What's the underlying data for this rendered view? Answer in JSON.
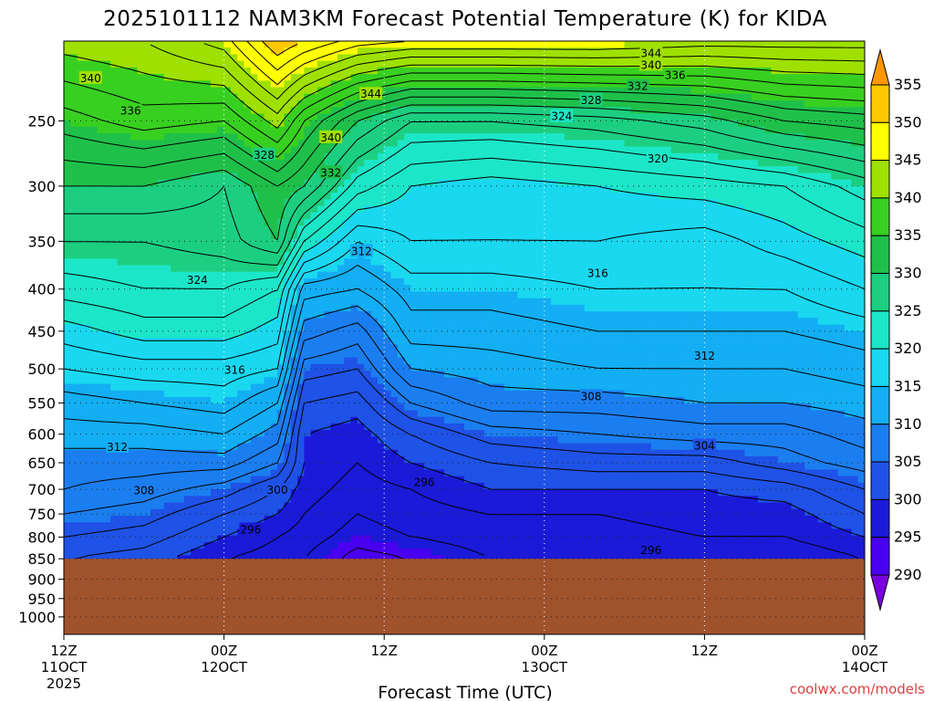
{
  "chart_data": {
    "type": "heatmap",
    "title": "2025101112 NAM3KM Forecast Potential Temperature (K) for KIDA",
    "xlabel": "Forecast Time (UTC)",
    "x_ticks": [
      {
        "label": "12Z",
        "sub": "11OCT",
        "sub2": "2025",
        "hours": 0
      },
      {
        "label": "00Z",
        "sub": "12OCT",
        "sub2": "",
        "hours": 12
      },
      {
        "label": "12Z",
        "sub": "",
        "sub2": "",
        "hours": 24
      },
      {
        "label": "00Z",
        "sub": "13OCT",
        "sub2": "",
        "hours": 36
      },
      {
        "label": "12Z",
        "sub": "",
        "sub2": "",
        "hours": 48
      },
      {
        "label": "00Z",
        "sub": "14OCT",
        "sub2": "",
        "hours": 60
      }
    ],
    "y_ticks": [
      250,
      300,
      350,
      400,
      450,
      500,
      550,
      600,
      650,
      700,
      750,
      800,
      850,
      900,
      950,
      1000
    ],
    "y_scale": "log",
    "ylim": [
      200,
      1050
    ],
    "xlim": [
      0,
      60
    ],
    "grid": true,
    "colorbar": {
      "levels": [
        290,
        295,
        300,
        305,
        310,
        315,
        320,
        325,
        330,
        335,
        340,
        345,
        350,
        355
      ],
      "colors": [
        "#7a00e0",
        "#4a00f0",
        "#1a1ad8",
        "#1f52e6",
        "#1b7ef0",
        "#13aef3",
        "#19d8f0",
        "#1ce6c8",
        "#1ccf80",
        "#1fc04a",
        "#38d020",
        "#9fe000",
        "#ffff00",
        "#ffc800",
        "#ff9800"
      ],
      "extend": "both"
    },
    "theta_profile": {
      "pressures": [
        200,
        250,
        300,
        350,
        400,
        450,
        500,
        550,
        600,
        650,
        700,
        750,
        800,
        850
      ],
      "times": [
        0,
        6,
        12,
        16,
        18,
        22,
        26,
        32,
        40,
        48,
        54,
        60
      ],
      "values": [
        [
          341,
          342,
          345,
          352,
          350,
          347,
          346,
          346,
          346,
          345,
          345,
          345
        ],
        [
          335,
          337,
          336,
          341,
          336,
          330,
          326,
          326,
          327,
          329,
          332,
          333
        ],
        [
          330,
          330,
          328,
          332,
          330,
          323,
          320,
          319,
          320,
          321,
          322,
          325
        ],
        [
          326,
          326,
          327,
          330,
          322,
          316,
          318,
          318,
          318,
          317,
          319,
          321
        ],
        [
          323,
          324,
          324,
          322,
          313,
          312,
          315,
          315,
          316,
          316,
          316,
          318
        ],
        [
          319,
          321,
          321,
          319,
          309,
          307,
          313,
          313,
          314,
          314,
          314,
          315
        ],
        [
          316,
          317,
          317,
          316,
          305,
          304,
          310,
          311,
          312,
          312,
          312,
          313
        ],
        [
          313,
          314,
          315,
          312,
          302,
          301,
          306,
          309,
          309,
          310,
          310,
          311
        ],
        [
          311,
          311,
          312,
          309,
          300,
          299,
          302,
          305,
          306,
          307,
          307,
          309
        ],
        [
          309,
          309,
          309,
          306,
          300,
          298,
          300,
          302,
          303,
          303,
          305,
          307
        ],
        [
          308,
          307,
          305,
          302,
          299,
          297,
          298,
          300,
          300,
          300,
          301,
          304
        ],
        [
          306,
          305,
          302,
          300,
          298,
          296,
          297,
          298,
          298,
          299,
          299,
          302
        ],
        [
          304,
          303,
          300,
          298,
          297,
          295,
          296,
          297,
          297,
          298,
          298,
          300
        ],
        [
          302,
          301,
          298,
          297,
          296,
          293,
          294,
          296,
          296,
          296,
          296,
          298
        ]
      ]
    },
    "contour_labels": [
      {
        "v": "340",
        "t": 2.0,
        "p": 222
      },
      {
        "v": "336",
        "t": 5.0,
        "p": 243
      },
      {
        "v": "344",
        "t": 23.0,
        "p": 232
      },
      {
        "v": "340",
        "t": 20.0,
        "p": 262
      },
      {
        "v": "332",
        "t": 20.0,
        "p": 289
      },
      {
        "v": "328",
        "t": 15.0,
        "p": 275
      },
      {
        "v": "344",
        "t": 44.0,
        "p": 207
      },
      {
        "v": "340",
        "t": 44.0,
        "p": 214
      },
      {
        "v": "336",
        "t": 45.8,
        "p": 220
      },
      {
        "v": "332",
        "t": 43.0,
        "p": 227
      },
      {
        "v": "328",
        "t": 39.5,
        "p": 236
      },
      {
        "v": "324",
        "t": 37.3,
        "p": 247
      },
      {
        "v": "320",
        "t": 44.5,
        "p": 278
      },
      {
        "v": "316",
        "t": 40.0,
        "p": 383
      },
      {
        "v": "312",
        "t": 22.3,
        "p": 360
      },
      {
        "v": "324",
        "t": 10.0,
        "p": 390
      },
      {
        "v": "316",
        "t": 12.8,
        "p": 502
      },
      {
        "v": "312",
        "t": 48.0,
        "p": 482
      },
      {
        "v": "308",
        "t": 39.5,
        "p": 540
      },
      {
        "v": "304",
        "t": 48.0,
        "p": 620
      },
      {
        "v": "312",
        "t": 4.0,
        "p": 622
      },
      {
        "v": "308",
        "t": 6.0,
        "p": 703
      },
      {
        "v": "300",
        "t": 16.0,
        "p": 702
      },
      {
        "v": "296",
        "t": 27.0,
        "p": 687
      },
      {
        "v": "296",
        "t": 14.0,
        "p": 784
      },
      {
        "v": "296",
        "t": 44.0,
        "p": 830
      }
    ],
    "terrain_below_pressure": 850
  },
  "credit": "coolwx.com/models"
}
